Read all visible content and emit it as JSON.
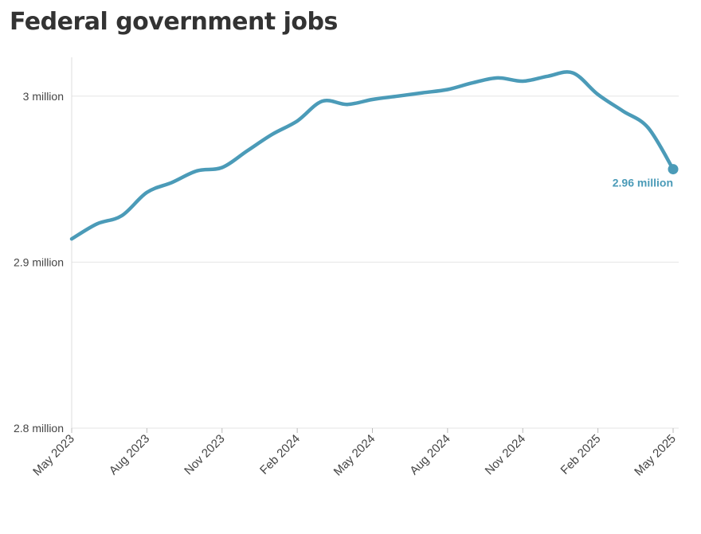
{
  "chart_data": {
    "type": "line",
    "title": "Federal government jobs",
    "x": [
      "2023-05",
      "2023-06",
      "2023-07",
      "2023-08",
      "2023-09",
      "2023-10",
      "2023-11",
      "2023-12",
      "2024-01",
      "2024-02",
      "2024-03",
      "2024-04",
      "2024-05",
      "2024-06",
      "2024-07",
      "2024-08",
      "2024-09",
      "2024-10",
      "2024-11",
      "2024-12",
      "2025-01",
      "2025-02",
      "2025-03",
      "2025-04",
      "2025-05"
    ],
    "series": [
      {
        "values": [
          2.914,
          2.923,
          2.928,
          2.942,
          2.948,
          2.955,
          2.957,
          2.967,
          2.977,
          2.985,
          2.997,
          2.995,
          2.998,
          3.0,
          3.002,
          3.004,
          3.008,
          3.011,
          3.009,
          3.012,
          3.014,
          3.001,
          2.991,
          2.981,
          2.956
        ],
        "color": "#4b9bb8"
      }
    ],
    "x_ticks": [
      "May 2023",
      "Aug 2023",
      "Nov 2023",
      "Feb 2024",
      "May 2024",
      "Aug 2024",
      "Nov 2024",
      "Feb 2025",
      "May 2025"
    ],
    "y_ticks": [
      "2.8 million",
      "2.9 million",
      "3 million"
    ],
    "y_tick_values": [
      2.8,
      2.9,
      3.0
    ],
    "ylim": [
      2.8,
      3.03
    ],
    "end_label": "2.96 million",
    "grid": true,
    "colors": {
      "line": "#4b9bb8",
      "grid": "#e6e6e6",
      "axis": "#dddddd",
      "text": "#444444",
      "title": "#333333"
    }
  }
}
